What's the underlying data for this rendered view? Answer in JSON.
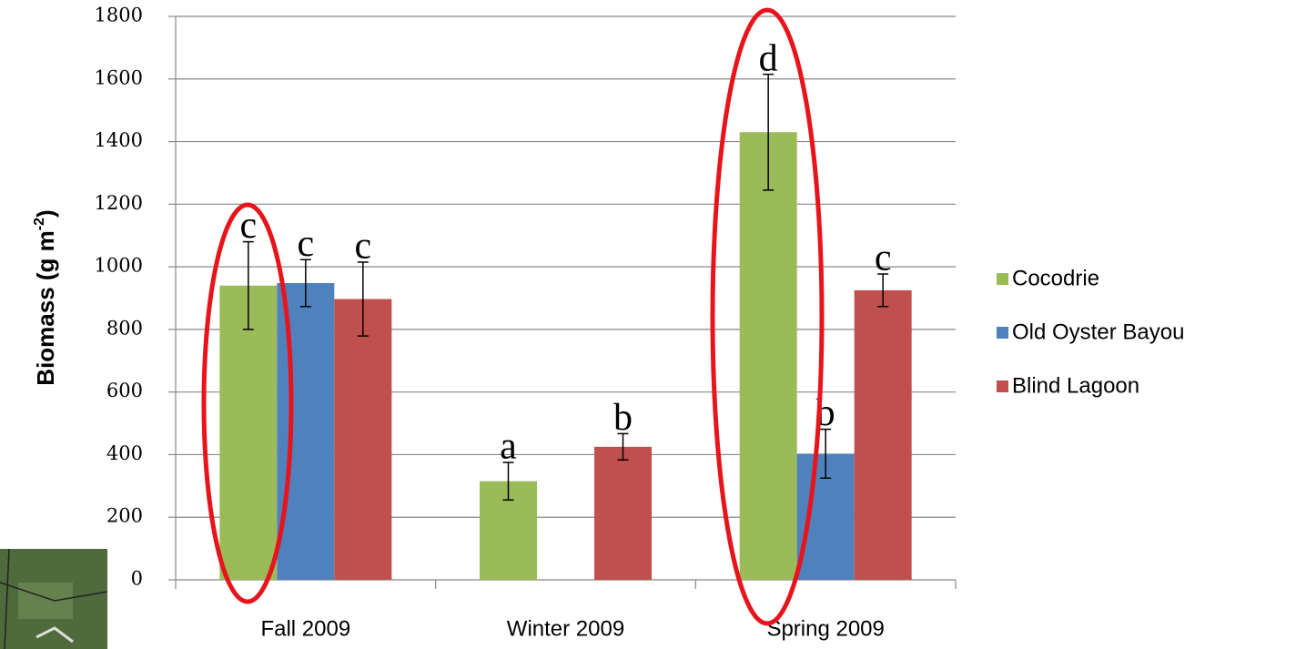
{
  "chart_data": {
    "type": "bar",
    "y_label": {
      "text": "Biomass (g m",
      "sup": "-2",
      "end": ")"
    },
    "categories": [
      "Fall 2009",
      "Winter 2009",
      "Spring 2009"
    ],
    "series": [
      {
        "name": "Cocodrie",
        "color": "#9bbb59",
        "values": [
          940,
          315,
          1430
        ],
        "errors": [
          140,
          60,
          185
        ],
        "letters": [
          "c",
          "a",
          "d"
        ]
      },
      {
        "name": "Old Oyster Bayou",
        "color": "#4f81bd",
        "values": [
          948,
          null,
          403
        ],
        "errors": [
          75,
          null,
          78
        ],
        "letters": [
          "c",
          null,
          "b"
        ]
      },
      {
        "name": "Blind Lagoon",
        "color": "#c0504d",
        "values": [
          897,
          425,
          925
        ],
        "errors": [
          118,
          42,
          52
        ],
        "letters": [
          "c",
          "b",
          "c"
        ]
      }
    ],
    "ylim": [
      0,
      1800
    ],
    "yticks": [
      0,
      200,
      400,
      600,
      800,
      1000,
      1200,
      1400,
      1600,
      1800
    ],
    "grid": true,
    "legend": "right"
  }
}
